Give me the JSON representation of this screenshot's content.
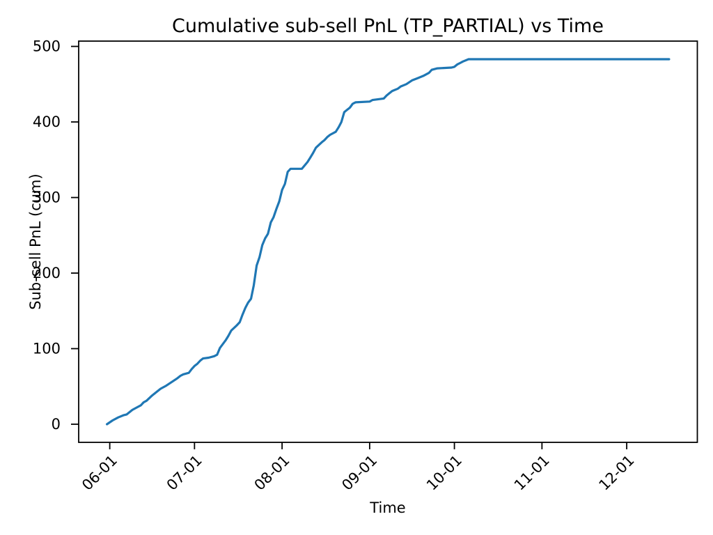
{
  "chart_data": {
    "type": "line",
    "title": "Cumulative sub-sell PnL (TP_PARTIAL) vs Time",
    "xlabel": "Time",
    "ylabel": "Sub-sell PnL (cum)",
    "x_tick_labels": [
      "06-01",
      "07-01",
      "08-01",
      "09-01",
      "10-01",
      "11-01",
      "12-01"
    ],
    "y_ticks": [
      0,
      100,
      200,
      300,
      400,
      500
    ],
    "xlim": [
      "05-21",
      "12-26"
    ],
    "ylim": [
      -24,
      507
    ],
    "grid": false,
    "legend_position": "none",
    "line_color": "#1f77b4",
    "series": [
      {
        "name": "Cumulative sub-sell PnL (TP_PARTIAL)",
        "points": [
          [
            "05-31",
            0
          ],
          [
            "06-02",
            5
          ],
          [
            "06-04",
            9
          ],
          [
            "06-06",
            12
          ],
          [
            "06-07",
            13
          ],
          [
            "06-09",
            19
          ],
          [
            "06-11",
            23
          ],
          [
            "06-12",
            25
          ],
          [
            "06-13",
            29
          ],
          [
            "06-14",
            31
          ],
          [
            "06-16",
            38
          ],
          [
            "06-18",
            44
          ],
          [
            "06-19",
            47
          ],
          [
            "06-21",
            51
          ],
          [
            "06-23",
            56
          ],
          [
            "06-25",
            61
          ],
          [
            "06-26",
            64
          ],
          [
            "06-27",
            66
          ],
          [
            "06-29",
            68
          ],
          [
            "06-30",
            73
          ],
          [
            "07-01",
            77
          ],
          [
            "07-02",
            80
          ],
          [
            "07-03",
            84
          ],
          [
            "07-04",
            87
          ],
          [
            "07-06",
            88
          ],
          [
            "07-08",
            90
          ],
          [
            "07-09",
            92
          ],
          [
            "07-10",
            101
          ],
          [
            "07-12",
            111
          ],
          [
            "07-13",
            117
          ],
          [
            "07-14",
            124
          ],
          [
            "07-16",
            131
          ],
          [
            "07-17",
            135
          ],
          [
            "07-18",
            145
          ],
          [
            "07-19",
            154
          ],
          [
            "07-20",
            161
          ],
          [
            "07-21",
            166
          ],
          [
            "07-22",
            184
          ],
          [
            "07-23",
            210
          ],
          [
            "07-24",
            221
          ],
          [
            "07-25",
            237
          ],
          [
            "07-26",
            246
          ],
          [
            "07-27",
            252
          ],
          [
            "07-28",
            267
          ],
          [
            "07-29",
            274
          ],
          [
            "07-30",
            285
          ],
          [
            "07-31",
            295
          ],
          [
            "08-01",
            310
          ],
          [
            "08-02",
            318
          ],
          [
            "08-03",
            334
          ],
          [
            "08-04",
            338
          ],
          [
            "08-08",
            338
          ],
          [
            "08-10",
            347
          ],
          [
            "08-11",
            353
          ],
          [
            "08-12",
            359
          ],
          [
            "08-13",
            366
          ],
          [
            "08-15",
            373
          ],
          [
            "08-16",
            376
          ],
          [
            "08-17",
            380
          ],
          [
            "08-18",
            383
          ],
          [
            "08-20",
            387
          ],
          [
            "08-21",
            393
          ],
          [
            "08-22",
            400
          ],
          [
            "08-23",
            413
          ],
          [
            "08-24",
            416
          ],
          [
            "08-25",
            419
          ],
          [
            "08-26",
            424
          ],
          [
            "08-27",
            426
          ],
          [
            "09-01",
            427
          ],
          [
            "09-02",
            429
          ],
          [
            "09-06",
            431
          ],
          [
            "09-07",
            435
          ],
          [
            "09-08",
            438
          ],
          [
            "09-09",
            441
          ],
          [
            "09-11",
            444
          ],
          [
            "09-12",
            447
          ],
          [
            "09-14",
            450
          ],
          [
            "09-16",
            455
          ],
          [
            "09-18",
            458
          ],
          [
            "09-20",
            461
          ],
          [
            "09-22",
            465
          ],
          [
            "09-23",
            469
          ],
          [
            "09-25",
            471
          ],
          [
            "09-30",
            472
          ],
          [
            "10-01",
            473
          ],
          [
            "10-02",
            476
          ],
          [
            "10-03",
            478
          ],
          [
            "10-04",
            480
          ],
          [
            "10-06",
            483
          ],
          [
            "12-16",
            483
          ]
        ]
      }
    ]
  }
}
